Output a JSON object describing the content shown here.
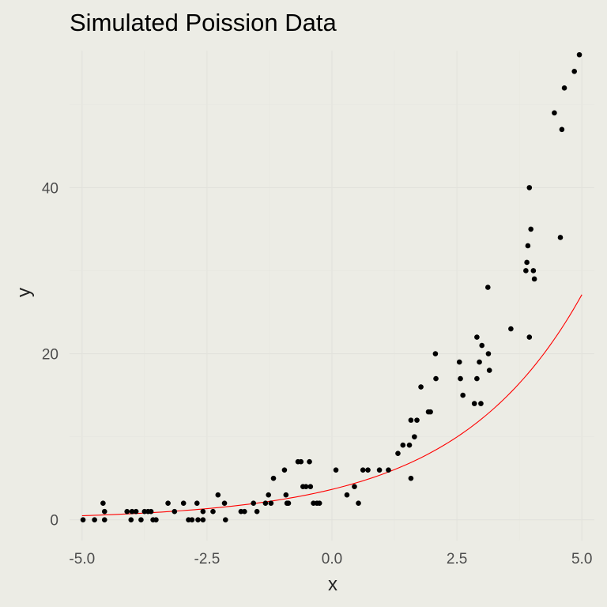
{
  "chart_data": {
    "type": "scatter",
    "title": "Simulated Poission Data",
    "xlabel": "x",
    "ylabel": "y",
    "xlim": [
      -5.25,
      5.25
    ],
    "ylim": [
      -2.5,
      56.5
    ],
    "x_ticks": [
      -5.0,
      -2.5,
      0.0,
      2.5,
      5.0
    ],
    "x_tick_labels": [
      "-5.0",
      "-2.5",
      "0.0",
      "2.5",
      "5.0"
    ],
    "y_ticks": [
      0,
      20,
      40
    ],
    "y_tick_labels": [
      "0",
      "20",
      "40"
    ],
    "grid": true,
    "legend": "none",
    "colors": {
      "points": "#000000",
      "fit_line": "#ff0000",
      "background": "#ecece5"
    },
    "series": [
      {
        "type": "scatter",
        "points": [
          [
            -4.98,
            0
          ],
          [
            -4.75,
            0
          ],
          [
            -4.58,
            2
          ],
          [
            -4.55,
            1
          ],
          [
            -4.55,
            0
          ],
          [
            -4.1,
            1
          ],
          [
            -4.02,
            0
          ],
          [
            -4.0,
            1
          ],
          [
            -3.92,
            1
          ],
          [
            -3.82,
            0
          ],
          [
            -3.75,
            1
          ],
          [
            -3.68,
            1
          ],
          [
            -3.62,
            1
          ],
          [
            -3.58,
            0
          ],
          [
            -3.52,
            0
          ],
          [
            -3.28,
            2
          ],
          [
            -3.15,
            1
          ],
          [
            -2.97,
            2
          ],
          [
            -2.87,
            0
          ],
          [
            -2.8,
            0
          ],
          [
            -2.7,
            2
          ],
          [
            -2.68,
            0
          ],
          [
            -2.58,
            1
          ],
          [
            -2.58,
            0
          ],
          [
            -2.38,
            1
          ],
          [
            -2.28,
            3
          ],
          [
            -2.15,
            2
          ],
          [
            -2.13,
            0
          ],
          [
            -1.82,
            1
          ],
          [
            -1.75,
            1
          ],
          [
            -1.57,
            2
          ],
          [
            -1.5,
            1
          ],
          [
            -1.33,
            2
          ],
          [
            -1.27,
            3
          ],
          [
            -1.22,
            2
          ],
          [
            -1.17,
            5
          ],
          [
            -0.95,
            6
          ],
          [
            -0.92,
            3
          ],
          [
            -0.9,
            2
          ],
          [
            -0.87,
            2
          ],
          [
            -0.68,
            7
          ],
          [
            -0.62,
            7
          ],
          [
            -0.58,
            4
          ],
          [
            -0.52,
            4
          ],
          [
            -0.45,
            7
          ],
          [
            -0.43,
            4
          ],
          [
            -0.37,
            2
          ],
          [
            -0.3,
            2
          ],
          [
            -0.25,
            2
          ],
          [
            0.08,
            6
          ],
          [
            0.3,
            3
          ],
          [
            0.45,
            4
          ],
          [
            0.53,
            2
          ],
          [
            0.62,
            6
          ],
          [
            0.72,
            6
          ],
          [
            0.95,
            6
          ],
          [
            1.13,
            6
          ],
          [
            1.32,
            8
          ],
          [
            1.42,
            9
          ],
          [
            1.55,
            9
          ],
          [
            1.58,
            12
          ],
          [
            1.58,
            5
          ],
          [
            1.65,
            10
          ],
          [
            1.7,
            12
          ],
          [
            1.78,
            16
          ],
          [
            1.93,
            13
          ],
          [
            1.97,
            13
          ],
          [
            2.07,
            20
          ],
          [
            2.08,
            17
          ],
          [
            2.55,
            19
          ],
          [
            2.57,
            17
          ],
          [
            2.62,
            15
          ],
          [
            2.85,
            14
          ],
          [
            2.9,
            22
          ],
          [
            2.9,
            17
          ],
          [
            2.95,
            19
          ],
          [
            2.98,
            14
          ],
          [
            3.0,
            21
          ],
          [
            3.12,
            28
          ],
          [
            3.13,
            20
          ],
          [
            3.15,
            18
          ],
          [
            3.58,
            23
          ],
          [
            3.88,
            30
          ],
          [
            3.9,
            31
          ],
          [
            3.92,
            33
          ],
          [
            3.95,
            40
          ],
          [
            3.95,
            22
          ],
          [
            3.98,
            35
          ],
          [
            4.03,
            30
          ],
          [
            4.05,
            29
          ],
          [
            4.45,
            49
          ],
          [
            4.57,
            34
          ],
          [
            4.6,
            47
          ],
          [
            4.65,
            52
          ],
          [
            4.85,
            54
          ],
          [
            4.95,
            56
          ]
        ]
      },
      {
        "type": "line",
        "function": "exp(1.3 + 0.4*x)",
        "x_range": [
          -5,
          5
        ]
      }
    ]
  }
}
